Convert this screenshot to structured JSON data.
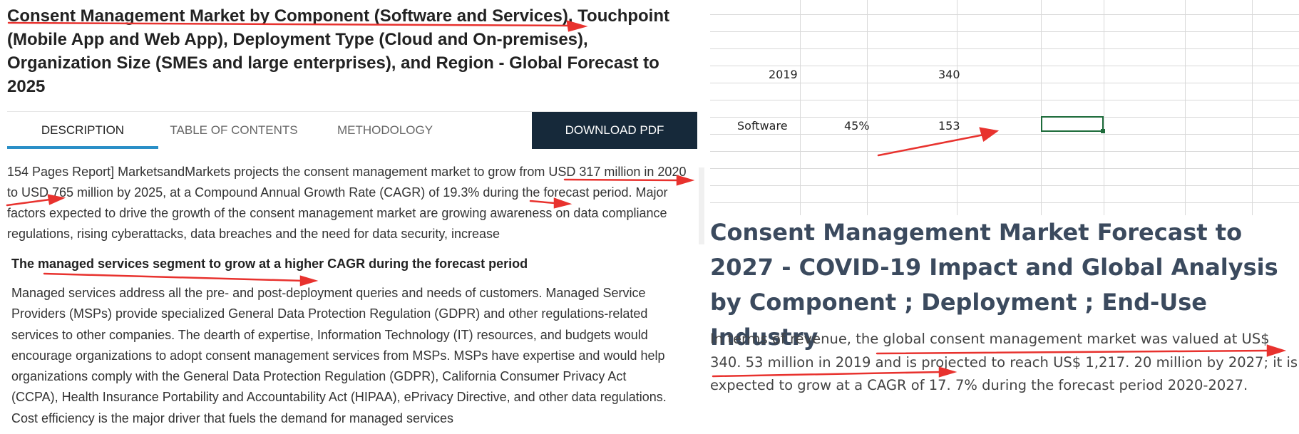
{
  "left": {
    "title": "Consent Management Market by Component (Software and Services), Touchpoint (Mobile App and Web App), Deployment Type (Cloud and On-premises), Organization Size (SMEs and large enterprises), and Region - Global Forecast to 2025",
    "tabs": [
      {
        "label": "DESCRIPTION",
        "active": true
      },
      {
        "label": "TABLE OF CONTENTS",
        "active": false
      },
      {
        "label": "METHODOLOGY",
        "active": false
      },
      {
        "label": "DOWNLOAD PDF",
        "active": false
      }
    ],
    "description": "154 Pages Report] MarketsandMarkets projects the consent management market to grow from USD 317 million in 2020 to USD 765 million by 2025, at a Compound Annual Growth Rate (CAGR) of 19.3% during the forecast period. Major factors expected to drive the growth of the consent management market are growing awareness on data compliance regulations, rising cyberattacks, data breaches and the need for data security, increase",
    "subheading": "The managed services segment to grow at a higher CAGR during the forecast period",
    "body": "Managed services address all the pre- and post-deployment queries and needs of customers. Managed Service Providers (MSPs) provide specialized General Data Protection Regulation (GDPR) and other regulations-related services to other companies. The dearth of expertise, Information Technology (IT) resources, and budgets would encourage organizations to adopt consent management services from MSPs. MSPs have expertise and would help organizations comply with the General Data Protection Regulation (GDPR), California Consumer Privacy Act (CCPA), Health Insurance Portability and Accountability Act (HIPAA), ePrivacy Directive, and other data regulations. Cost efficiency is the major driver that fuels the demand for managed services"
  },
  "sheet": {
    "row1": {
      "a": "2019",
      "c": "340"
    },
    "row2": {
      "a": "Software",
      "b": "45%",
      "c": "153"
    }
  },
  "right": {
    "title": "Consent Management Market Forecast to 2027 - COVID-19 Impact and Global Analysis by Component ; Deployment ; End-Use Industry",
    "paragraph": "In terms of revenue, the global consent management market was valued at US$ 340. 53 million in 2019 and is projected to reach US$ 1,217. 20 million by 2027; it is expected to grow at a CAGR of 17. 7% during the forecast period 2020-2027."
  },
  "colors": {
    "annotation_arrow": "#e8322e",
    "download_bg": "#16293a",
    "active_tab_underline": "#2a8fc7",
    "selected_cell_border": "#1d6b3a",
    "right_title": "#3b4a5e"
  }
}
